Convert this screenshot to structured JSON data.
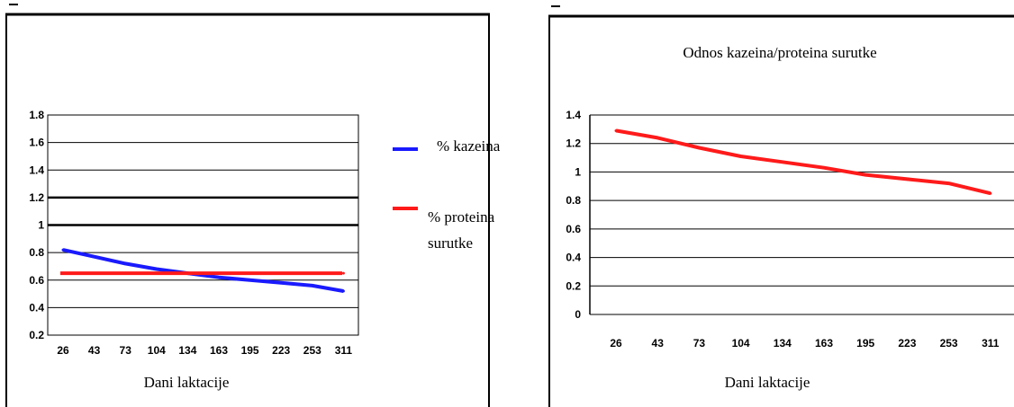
{
  "chart_data": [
    {
      "type": "line",
      "title": "",
      "categories": [
        "26",
        "43",
        "73",
        "104",
        "134",
        "163",
        "195",
        "223",
        "253",
        "311"
      ],
      "xlabel": "Dani laktacije",
      "ylabel": "",
      "ylim": [
        0.2,
        1.8
      ],
      "yticks": [
        "0.2",
        "0.4",
        "0.6",
        "0.8",
        "1",
        "1.2",
        "1.4",
        "1.6",
        "1.8"
      ],
      "grid": true,
      "legend_position": "right",
      "series": [
        {
          "name": "% kazeina",
          "color": "#1a1aff",
          "values": [
            0.82,
            0.77,
            0.72,
            0.68,
            0.65,
            0.62,
            0.6,
            0.58,
            0.56,
            0.52
          ]
        },
        {
          "name": "% proteina surutke",
          "color": "#ff1a1a",
          "values": [
            0.65,
            0.65,
            0.65,
            0.65,
            0.65,
            0.65,
            0.65,
            0.65,
            0.65,
            0.65
          ]
        }
      ],
      "legend_lines": [
        [
          "% kazeina"
        ],
        [
          "% proteina",
          "surutke"
        ]
      ]
    },
    {
      "type": "line",
      "title": "Odnos kazeina/proteina surutke",
      "categories": [
        "26",
        "43",
        "73",
        "104",
        "134",
        "163",
        "195",
        "223",
        "253",
        "311"
      ],
      "xlabel": "Dani laktacije",
      "ylabel": "",
      "ylim": [
        0,
        1.4
      ],
      "yticks": [
        "0",
        "0.2",
        "0.4",
        "0.6",
        "0.8",
        "1",
        "1.2",
        "1.4"
      ],
      "grid": true,
      "series": [
        {
          "color": "#ff1a1a",
          "values": [
            1.29,
            1.24,
            1.17,
            1.11,
            1.07,
            1.03,
            0.98,
            0.95,
            0.92,
            0.85
          ]
        }
      ]
    }
  ]
}
